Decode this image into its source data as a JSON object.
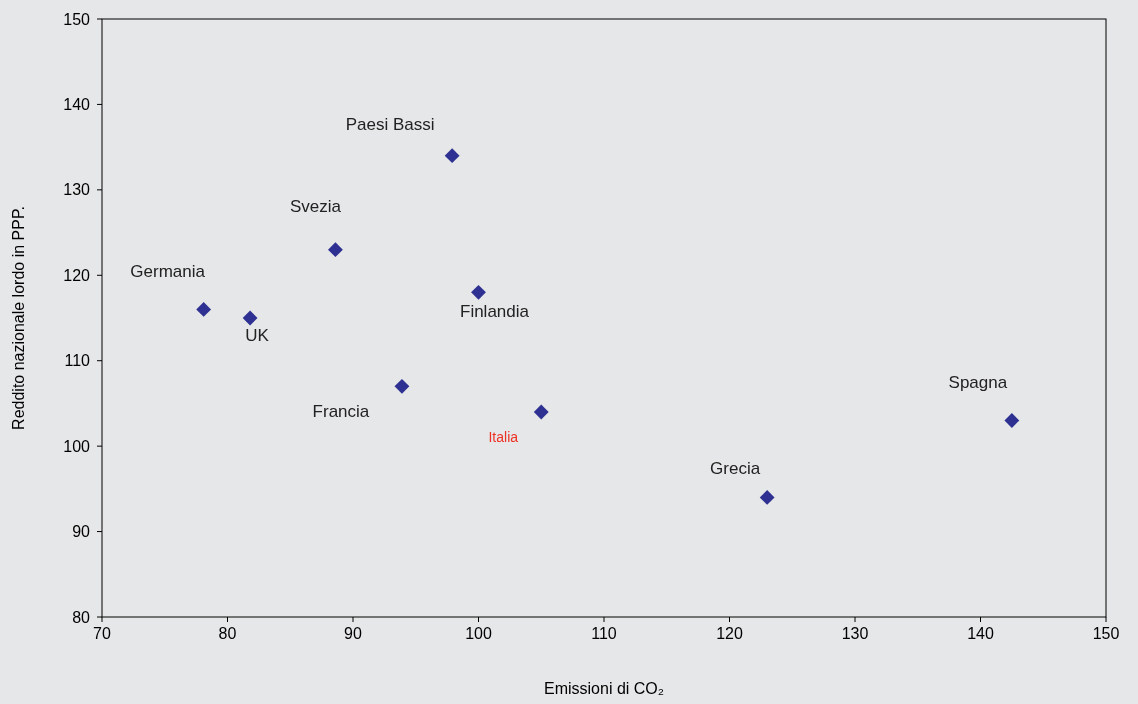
{
  "chart_data": {
    "type": "scatter",
    "xlabel": "Emissioni di CO₂",
    "ylabel": "Reddito nazionale lordo in PPP.",
    "x": [
      78.1,
      81.8,
      88.6,
      97.9,
      100,
      93.9,
      105,
      123,
      142.5
    ],
    "series": [
      {
        "color": "#2e3192",
        "values": [
          116,
          115,
          123,
          134,
          118,
          107,
          104,
          94,
          103
        ]
      }
    ],
    "marker": "diamond",
    "grid": false,
    "xlim": [
      70,
      150
    ],
    "xticks": [
      70,
      80,
      90,
      100,
      110,
      120,
      130,
      140,
      150
    ],
    "ylim": [
      80,
      150
    ],
    "yticks": [
      80,
      90,
      100,
      110,
      120,
      130,
      140,
      150
    ],
    "annotations": [
      {
        "text": "Germania",
        "x": 78.1,
        "y": 116
      },
      {
        "text": "UK",
        "x": 81.8,
        "y": 115
      },
      {
        "text": "Svezia",
        "x": 88.6,
        "y": 123
      },
      {
        "text": "Paesi Bassi",
        "x": 97.9,
        "y": 134
      },
      {
        "text": "Finlandia",
        "x": 100,
        "y": 118
      },
      {
        "text": "Francia",
        "x": 93.9,
        "y": 107
      },
      {
        "text": "Italia",
        "x": 105,
        "y": 104
      },
      {
        "text": "Grecia",
        "x": 123,
        "y": 94
      },
      {
        "text": "Spagna",
        "x": 142.5,
        "y": 103
      }
    ]
  }
}
